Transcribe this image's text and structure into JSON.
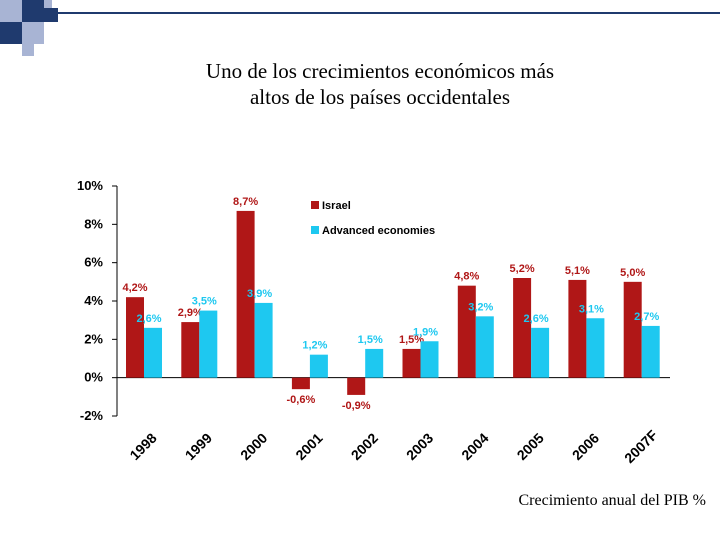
{
  "slide": {
    "title_line1": "Uno de los crecimientos económicos más",
    "title_line2": "altos de los países occidentales",
    "caption": "Crecimiento anual del PIB  %"
  },
  "colors": {
    "israel": "#b01717",
    "advanced": "#1ec8f0",
    "decor_dark": "#1f3a6e",
    "decor_light": "#a8b4d4"
  },
  "chart_data": {
    "type": "bar",
    "title": "",
    "xlabel": "",
    "ylabel": "",
    "ylim": [
      -2,
      10
    ],
    "yticks": [
      -2,
      0,
      2,
      4,
      6,
      8,
      10
    ],
    "ytick_labels": [
      "-2%",
      "0%",
      "2%",
      "4%",
      "6%",
      "8%",
      "10%"
    ],
    "grid": false,
    "legend_position": "top",
    "categories": [
      "1998",
      "1999",
      "2000",
      "2001",
      "2002",
      "2003",
      "2004",
      "2005",
      "2006",
      "2007F"
    ],
    "series": [
      {
        "name": "Israel",
        "values": [
          4.2,
          2.9,
          8.7,
          -0.6,
          -0.9,
          1.5,
          4.8,
          5.2,
          5.1,
          5.0
        ],
        "labels": [
          "4,2%",
          "2,9%",
          "8,7%",
          "-0,6%",
          "-0,9%",
          "1,5%",
          "4,8%",
          "5,2%",
          "5,1%",
          "5,0%"
        ]
      },
      {
        "name": "Advanced economies",
        "values": [
          2.6,
          3.5,
          3.9,
          1.2,
          1.5,
          1.9,
          3.2,
          2.6,
          3.1,
          2.7
        ],
        "labels": [
          "2,6%",
          "3,5%",
          "3,9%",
          "1,2%",
          "1,5%",
          "1,9%",
          "3,2%",
          "2,6%",
          "3,1%",
          "2,7%"
        ]
      }
    ]
  }
}
